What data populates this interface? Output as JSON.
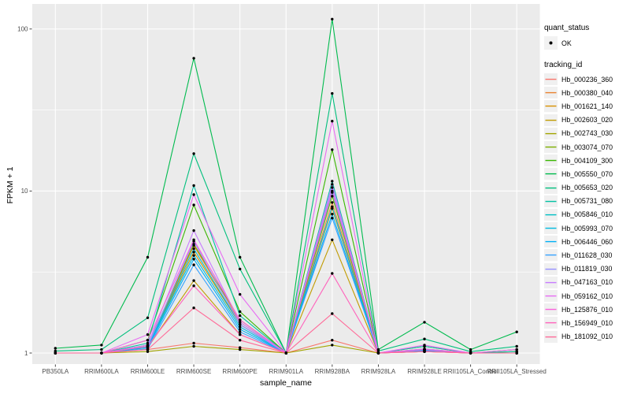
{
  "figure": {
    "background": "#ffffff",
    "panel_bg": "#EBEBEB",
    "grid_color": "#FFFFFF",
    "tick_color": "#333333",
    "tick_label_color": "#4D4D4D",
    "axis_title_color": "#000000",
    "point_color": "#000000",
    "legend_key_bg": "#F0F0F0"
  },
  "axes": {
    "x_title": "sample_name",
    "y_title": "FPKM + 1",
    "y_tick_labels": [
      "1",
      "10",
      "100"
    ],
    "y_tick_values": [
      1,
      10,
      100
    ]
  },
  "legend": {
    "quant_status_title": "quant_status",
    "quant_status_items": [
      {
        "label": "OK",
        "shape": "black-point"
      }
    ],
    "tracking_title": "tracking_id"
  },
  "chart_data": {
    "type": "line",
    "title": "",
    "xlabel": "sample_name",
    "ylabel": "FPKM + 1",
    "y_scale": "log10",
    "ylim": [
      0.85,
      145
    ],
    "y_breaks": [
      1,
      10,
      100
    ],
    "y_minor_breaks": [
      3.162,
      31.62
    ],
    "grid": true,
    "legend_position": "right",
    "marker": "black point (quant_status OK)",
    "categories": [
      "PB350LA",
      "RRIM600LA",
      "RRIM600LE",
      "RRIM600SE",
      "RRIM600PE",
      "RRIM901LA",
      "RRIM928BA",
      "RRIM928LA",
      "RRIM928LE",
      "RRII105LA_Control",
      "RRII105LA_Stressed"
    ],
    "series": [
      {
        "name": "Hb_000236_360",
        "color": "#F8766D",
        "values": [
          1,
          1,
          1.05,
          1.15,
          1.08,
          1,
          1.2,
          1,
          1.02,
          1,
          1
        ]
      },
      {
        "name": "Hb_000380_040",
        "color": "#EA8331",
        "values": [
          1,
          1,
          1.1,
          4.6,
          1.55,
          1,
          8.5,
          1,
          1.05,
          1,
          1
        ]
      },
      {
        "name": "Hb_001621_140",
        "color": "#D89000",
        "values": [
          1,
          1,
          1.1,
          4.2,
          1.5,
          1,
          7.8,
          1,
          1.05,
          1,
          1
        ]
      },
      {
        "name": "Hb_002603_020",
        "color": "#C09B00",
        "values": [
          1,
          1,
          1.08,
          2.8,
          1.3,
          1,
          5.0,
          1,
          1.04,
          1,
          1
        ]
      },
      {
        "name": "Hb_002743_030",
        "color": "#A3A500",
        "values": [
          1,
          1,
          1.02,
          1.1,
          1.05,
          1,
          1.12,
          1,
          1.02,
          1,
          1.02
        ]
      },
      {
        "name": "Hb_003074_070",
        "color": "#7CAE00",
        "values": [
          1,
          1,
          1.12,
          4.7,
          1.6,
          1,
          9.3,
          1,
          1.06,
          1,
          1
        ]
      },
      {
        "name": "Hb_004109_300",
        "color": "#39B600",
        "values": [
          1,
          1,
          1.2,
          8.2,
          1.8,
          1,
          18,
          1,
          1.1,
          1,
          1.05
        ]
      },
      {
        "name": "Hb_005550_070",
        "color": "#00BB4E",
        "values": [
          1.07,
          1.12,
          3.9,
          66,
          3.9,
          1,
          115,
          1.05,
          1.55,
          1.05,
          1.35
        ]
      },
      {
        "name": "Hb_005653_020",
        "color": "#00BF7D",
        "values": [
          1.03,
          1.05,
          1.65,
          17,
          3.3,
          1,
          40,
          1.03,
          1.22,
          1.02,
          1.1
        ]
      },
      {
        "name": "Hb_005731_080",
        "color": "#00C1A3",
        "values": [
          1,
          1,
          1.15,
          10.8,
          1.7,
          1,
          11.5,
          1,
          1.1,
          1,
          1.02
        ]
      },
      {
        "name": "Hb_005846_010",
        "color": "#00BFC4",
        "values": [
          1,
          1,
          1.1,
          4.4,
          1.5,
          1,
          9.8,
          1,
          1.05,
          1,
          1
        ]
      },
      {
        "name": "Hb_005993_070",
        "color": "#00BAE0",
        "values": [
          1,
          1,
          1.1,
          4.0,
          1.45,
          1,
          8.0,
          1,
          1.05,
          1,
          1
        ]
      },
      {
        "name": "Hb_006446_060",
        "color": "#00B0F6",
        "values": [
          1,
          1,
          1.08,
          3.8,
          1.4,
          1,
          7.2,
          1,
          1.04,
          1,
          1
        ]
      },
      {
        "name": "Hb_011628_030",
        "color": "#35A2FF",
        "values": [
          1,
          1,
          1.06,
          3.5,
          1.35,
          1,
          6.8,
          1,
          1.03,
          1,
          1
        ]
      },
      {
        "name": "Hb_011819_030",
        "color": "#9590FF",
        "values": [
          1,
          1,
          1.1,
          4.9,
          1.5,
          1,
          10.5,
          1,
          1.05,
          1,
          1
        ]
      },
      {
        "name": "Hb_047163_010",
        "color": "#C77CFF",
        "values": [
          1,
          1,
          1.12,
          5.7,
          1.55,
          1,
          11.0,
          1,
          1.06,
          1,
          1
        ]
      },
      {
        "name": "Hb_059162_010",
        "color": "#E76BF3",
        "values": [
          1,
          1,
          1.3,
          9.5,
          2.3,
          1,
          27,
          1,
          1.12,
          1,
          1.05
        ]
      },
      {
        "name": "Hb_125876_010",
        "color": "#FA62DB",
        "values": [
          1,
          1,
          1.2,
          5.0,
          1.6,
          1,
          10.0,
          1,
          1.05,
          1,
          1
        ]
      },
      {
        "name": "Hb_156949_010",
        "color": "#FF62BC",
        "values": [
          1,
          1,
          1.1,
          2.6,
          1.3,
          1,
          3.1,
          1,
          1.02,
          1,
          1
        ]
      },
      {
        "name": "Hb_181092_010",
        "color": "#FF6A98",
        "values": [
          1,
          1,
          1.05,
          1.9,
          1.2,
          1,
          1.75,
          1,
          1.02,
          1,
          1
        ]
      }
    ]
  }
}
